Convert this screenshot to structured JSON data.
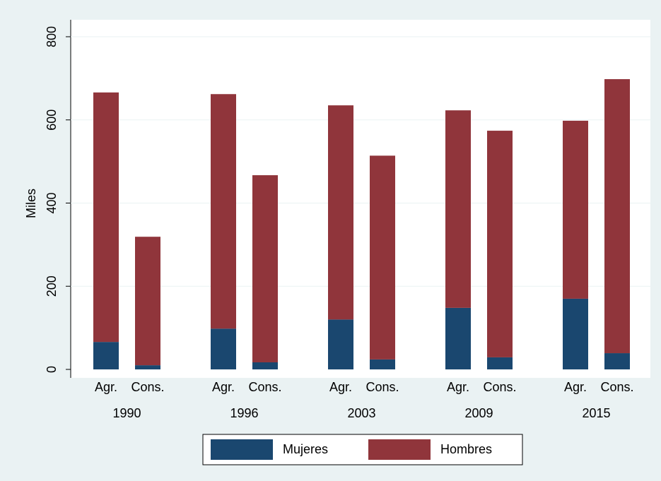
{
  "chart_data": {
    "type": "grouped-stacked-bar",
    "y_label": "Miles",
    "groups": [
      "1990",
      "1996",
      "2003",
      "2009",
      "2015"
    ],
    "categories": [
      "Agr.",
      "Cons.",
      "Agr.",
      "Cons.",
      "Agr.",
      "Cons.",
      "Agr.",
      "Cons.",
      "Agr.",
      "Cons."
    ],
    "series": [
      {
        "name": "Mujeres",
        "color": "#1a476f",
        "values": [
          66,
          10,
          98,
          17,
          120,
          24,
          148,
          29,
          170,
          39
        ]
      },
      {
        "name": "Hombres",
        "color": "#90353b",
        "values": [
          600,
          309,
          564,
          450,
          515,
          490,
          475,
          545,
          428,
          659
        ]
      }
    ],
    "ylim": [
      0,
      800
    ],
    "yticks": [
      0,
      200,
      400,
      600,
      800
    ],
    "grid": true
  }
}
